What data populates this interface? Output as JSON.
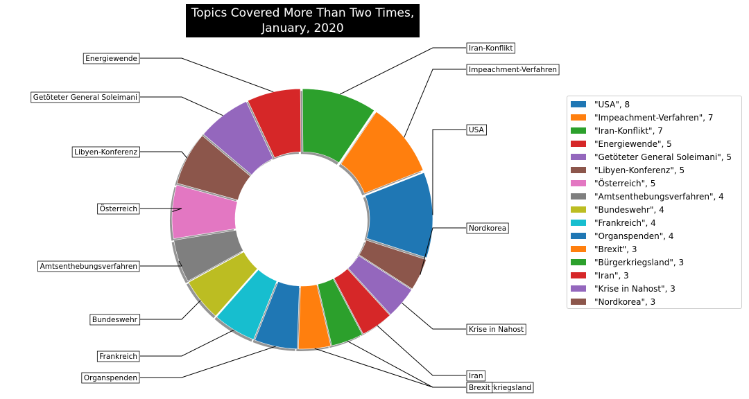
{
  "chart_data": {
    "type": "pie",
    "donut": true,
    "title_lines": [
      "Topics Covered More Than Two Times,",
      "January, 2020"
    ],
    "legend_position": "right",
    "categories": [
      "USA",
      "Impeachment-Verfahren",
      "Iran-Konflikt",
      "Energiewende",
      "Getöteter General Soleimani",
      "Libyen-Konferenz",
      "Österreich",
      "Amtsenthebungsverfahren",
      "Bundeswehr",
      "Frankreich",
      "Organspenden",
      "Brexit",
      "Bürgerkriegsland",
      "Iran",
      "Krise in Nahost",
      "Nordkorea"
    ],
    "values": [
      8,
      7,
      7,
      5,
      5,
      5,
      5,
      4,
      4,
      4,
      4,
      3,
      3,
      3,
      3,
      3
    ],
    "colors": [
      "#1f77b4",
      "#ff7f0e",
      "#2ca02c",
      "#d62728",
      "#9467bd",
      "#8c564b",
      "#e377c2",
      "#7f7f7f",
      "#bcbd22",
      "#17becf",
      "#1f77b4",
      "#ff7f0e",
      "#2ca02c",
      "#d62728",
      "#9467bd",
      "#8c564b"
    ],
    "legend_labels": [
      "\"USA\", 8",
      "\"Impeachment-Verfahren\", 7",
      "\"Iran-Konflikt\", 7",
      "\"Energiewende\", 5",
      "\"Getöteter General Soleimani\", 5",
      "\"Libyen-Konferenz\", 5",
      "\"Österreich\", 5",
      "\"Amtsenthebungsverfahren\", 4",
      "\"Bundeswehr\", 4",
      "\"Frankreich\", 4",
      "\"Organspenden\", 4",
      "\"Brexit\", 3",
      "\"Bürgerkriegsland\", 3",
      "\"Iran\", 3",
      "\"Krise in Nahost\", 3",
      "\"Nordkorea\", 3"
    ]
  }
}
